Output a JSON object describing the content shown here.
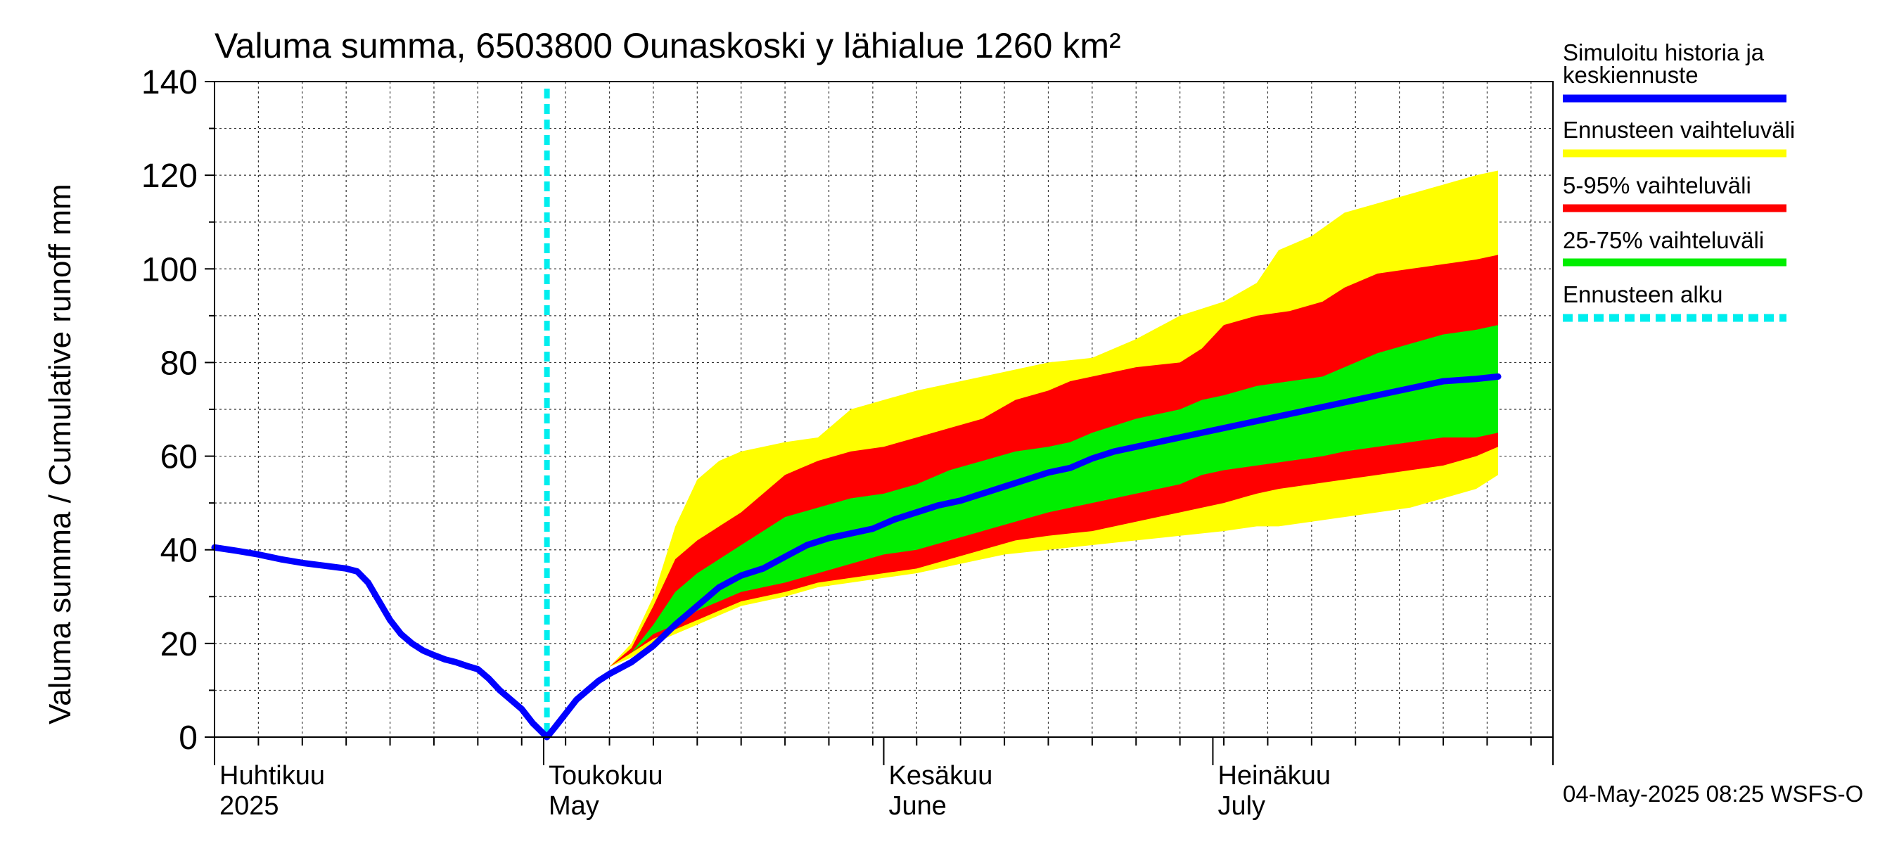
{
  "chart_data": {
    "type": "area",
    "title": "Valuma summa, 6503800 Ounaskoski y lähialue 1260 km²",
    "ylabel": "Valuma summa / Cumulative runoff    mm",
    "ylim": [
      0,
      140
    ],
    "yticks": [
      "0",
      "20",
      "40",
      "60",
      "80",
      "100",
      "120",
      "140"
    ],
    "x_range_days": [
      0,
      122
    ],
    "x_range_dates": [
      "2025-04-01",
      "2025-08-01"
    ],
    "month_labels": [
      {
        "day": 0,
        "fi": "Huhtikuu",
        "en": "2025"
      },
      {
        "day": 30,
        "fi": "Toukokuu",
        "en": "May"
      },
      {
        "day": 61,
        "fi": "Kesäkuu",
        "en": "June"
      },
      {
        "day": 91,
        "fi": "Heinäkuu",
        "en": "July"
      }
    ],
    "forecast_start_day": 30.3,
    "grid": true,
    "legend_placement": "right",
    "timestamp": "04-May-2025 08:25 WSFS-O",
    "series": [
      {
        "name": "Ennusteen vaihteluväli",
        "color": "#ffff00",
        "type": "band",
        "upper": [
          [
            30.3,
            0
          ],
          [
            32,
            7
          ],
          [
            34,
            12
          ],
          [
            36,
            15
          ],
          [
            38,
            20
          ],
          [
            40,
            30
          ],
          [
            42,
            45
          ],
          [
            44,
            55
          ],
          [
            46,
            59
          ],
          [
            48,
            61
          ],
          [
            52,
            63
          ],
          [
            55,
            64
          ],
          [
            58,
            70
          ],
          [
            61,
            72
          ],
          [
            64,
            74
          ],
          [
            68,
            76
          ],
          [
            72,
            78
          ],
          [
            76,
            80
          ],
          [
            80,
            81
          ],
          [
            84,
            85
          ],
          [
            88,
            90
          ],
          [
            92,
            93
          ],
          [
            95,
            97
          ],
          [
            97,
            104
          ],
          [
            100,
            107
          ],
          [
            103,
            112
          ],
          [
            106,
            114
          ],
          [
            109,
            116
          ],
          [
            112,
            118
          ],
          [
            115,
            120
          ],
          [
            117,
            121
          ]
        ],
        "lower": [
          [
            30.3,
            0
          ],
          [
            32,
            7
          ],
          [
            34,
            12
          ],
          [
            36,
            15
          ],
          [
            38,
            17
          ],
          [
            40,
            20
          ],
          [
            42,
            22
          ],
          [
            44,
            24
          ],
          [
            46,
            26
          ],
          [
            48,
            28
          ],
          [
            52,
            30
          ],
          [
            55,
            32
          ],
          [
            58,
            33
          ],
          [
            61,
            34
          ],
          [
            64,
            35
          ],
          [
            68,
            37
          ],
          [
            72,
            39
          ],
          [
            76,
            40
          ],
          [
            80,
            41
          ],
          [
            84,
            42
          ],
          [
            88,
            43
          ],
          [
            92,
            44
          ],
          [
            95,
            45
          ],
          [
            97,
            45
          ],
          [
            100,
            46
          ],
          [
            103,
            47
          ],
          [
            106,
            48
          ],
          [
            109,
            49
          ],
          [
            112,
            51
          ],
          [
            115,
            53
          ],
          [
            117,
            56
          ]
        ]
      },
      {
        "name": "5-95% vaihteluväli",
        "color": "#ff0000",
        "type": "band",
        "upper": [
          [
            30.3,
            0
          ],
          [
            32,
            7
          ],
          [
            34,
            12
          ],
          [
            36,
            15
          ],
          [
            38,
            19
          ],
          [
            40,
            28
          ],
          [
            42,
            38
          ],
          [
            44,
            42
          ],
          [
            46,
            45
          ],
          [
            48,
            48
          ],
          [
            50,
            52
          ],
          [
            52,
            56
          ],
          [
            55,
            59
          ],
          [
            58,
            61
          ],
          [
            61,
            62
          ],
          [
            64,
            64
          ],
          [
            67,
            66
          ],
          [
            70,
            68
          ],
          [
            73,
            72
          ],
          [
            76,
            74
          ],
          [
            78,
            76
          ],
          [
            80,
            77
          ],
          [
            84,
            79
          ],
          [
            88,
            80
          ],
          [
            90,
            83
          ],
          [
            92,
            88
          ],
          [
            95,
            90
          ],
          [
            98,
            91
          ],
          [
            101,
            93
          ],
          [
            103,
            96
          ],
          [
            106,
            99
          ],
          [
            109,
            100
          ],
          [
            112,
            101
          ],
          [
            115,
            102
          ],
          [
            117,
            103
          ]
        ],
        "lower": [
          [
            30.3,
            0
          ],
          [
            32,
            7
          ],
          [
            34,
            12
          ],
          [
            36,
            15
          ],
          [
            38,
            18
          ],
          [
            40,
            21
          ],
          [
            42,
            23
          ],
          [
            44,
            25
          ],
          [
            46,
            27
          ],
          [
            48,
            29
          ],
          [
            52,
            31
          ],
          [
            55,
            33
          ],
          [
            58,
            34
          ],
          [
            61,
            35
          ],
          [
            64,
            36
          ],
          [
            67,
            38
          ],
          [
            70,
            40
          ],
          [
            73,
            42
          ],
          [
            76,
            43
          ],
          [
            80,
            44
          ],
          [
            84,
            46
          ],
          [
            88,
            48
          ],
          [
            92,
            50
          ],
          [
            95,
            52
          ],
          [
            97,
            53
          ],
          [
            100,
            54
          ],
          [
            103,
            55
          ],
          [
            106,
            56
          ],
          [
            109,
            57
          ],
          [
            112,
            58
          ],
          [
            115,
            60
          ],
          [
            117,
            62
          ]
        ]
      },
      {
        "name": "25-75% vaihteluväli",
        "color": "#00ee00",
        "type": "band",
        "upper": [
          [
            30.3,
            0
          ],
          [
            32,
            7
          ],
          [
            34,
            12
          ],
          [
            36,
            15
          ],
          [
            38,
            18
          ],
          [
            40,
            24
          ],
          [
            42,
            31
          ],
          [
            44,
            35
          ],
          [
            46,
            38
          ],
          [
            48,
            41
          ],
          [
            50,
            44
          ],
          [
            52,
            47
          ],
          [
            55,
            49
          ],
          [
            58,
            51
          ],
          [
            61,
            52
          ],
          [
            64,
            54
          ],
          [
            67,
            57
          ],
          [
            70,
            59
          ],
          [
            73,
            61
          ],
          [
            76,
            62
          ],
          [
            78,
            63
          ],
          [
            80,
            65
          ],
          [
            84,
            68
          ],
          [
            88,
            70
          ],
          [
            90,
            72
          ],
          [
            92,
            73
          ],
          [
            95,
            75
          ],
          [
            98,
            76
          ],
          [
            101,
            77
          ],
          [
            103,
            79
          ],
          [
            106,
            82
          ],
          [
            109,
            84
          ],
          [
            112,
            86
          ],
          [
            115,
            87
          ],
          [
            117,
            88
          ]
        ],
        "lower": [
          [
            30.3,
            0
          ],
          [
            32,
            7
          ],
          [
            34,
            12
          ],
          [
            36,
            15
          ],
          [
            38,
            18
          ],
          [
            40,
            22
          ],
          [
            42,
            24
          ],
          [
            44,
            27
          ],
          [
            46,
            29
          ],
          [
            48,
            31
          ],
          [
            52,
            33
          ],
          [
            55,
            35
          ],
          [
            58,
            37
          ],
          [
            61,
            39
          ],
          [
            64,
            40
          ],
          [
            67,
            42
          ],
          [
            70,
            44
          ],
          [
            73,
            46
          ],
          [
            76,
            48
          ],
          [
            80,
            50
          ],
          [
            84,
            52
          ],
          [
            88,
            54
          ],
          [
            90,
            56
          ],
          [
            92,
            57
          ],
          [
            95,
            58
          ],
          [
            98,
            59
          ],
          [
            101,
            60
          ],
          [
            103,
            61
          ],
          [
            106,
            62
          ],
          [
            109,
            63
          ],
          [
            112,
            64
          ],
          [
            115,
            64
          ],
          [
            117,
            65
          ]
        ]
      },
      {
        "name": "Simuloitu historia ja keskiennuste",
        "color": "#0000ff",
        "type": "line",
        "points": [
          [
            0,
            40.5
          ],
          [
            2,
            39.8
          ],
          [
            4,
            39
          ],
          [
            6,
            38
          ],
          [
            8,
            37.2
          ],
          [
            10,
            36.6
          ],
          [
            12,
            36
          ],
          [
            13,
            35.4
          ],
          [
            14,
            33
          ],
          [
            15,
            29
          ],
          [
            16,
            25
          ],
          [
            17,
            22
          ],
          [
            18,
            20
          ],
          [
            19,
            18.5
          ],
          [
            20,
            17.5
          ],
          [
            21,
            16.6
          ],
          [
            22,
            16
          ],
          [
            23,
            15.2
          ],
          [
            24,
            14.5
          ],
          [
            25,
            12.5
          ],
          [
            26,
            10
          ],
          [
            27,
            8
          ],
          [
            28,
            6
          ],
          [
            29,
            3
          ],
          [
            30.3,
            0
          ],
          [
            31,
            2
          ],
          [
            32,
            5
          ],
          [
            33,
            8
          ],
          [
            34,
            10
          ],
          [
            35,
            12
          ],
          [
            36,
            13.5
          ],
          [
            38,
            16
          ],
          [
            40,
            19.5
          ],
          [
            42,
            24
          ],
          [
            44,
            28
          ],
          [
            46,
            32
          ],
          [
            48,
            34.5
          ],
          [
            50,
            36
          ],
          [
            52,
            38.5
          ],
          [
            54,
            41
          ],
          [
            56,
            42.5
          ],
          [
            58,
            43.5
          ],
          [
            60,
            44.5
          ],
          [
            62,
            46.5
          ],
          [
            64,
            48
          ],
          [
            66,
            49.5
          ],
          [
            68,
            50.5
          ],
          [
            70,
            52
          ],
          [
            72,
            53.5
          ],
          [
            74,
            55
          ],
          [
            76,
            56.5
          ],
          [
            78,
            57.5
          ],
          [
            80,
            59.5
          ],
          [
            82,
            61
          ],
          [
            84,
            62
          ],
          [
            86,
            63
          ],
          [
            88,
            64
          ],
          [
            90,
            65
          ],
          [
            92,
            66
          ],
          [
            94,
            67
          ],
          [
            96,
            68
          ],
          [
            98,
            69
          ],
          [
            100,
            70
          ],
          [
            102,
            71
          ],
          [
            104,
            72
          ],
          [
            106,
            73
          ],
          [
            108,
            74
          ],
          [
            110,
            75
          ],
          [
            112,
            76
          ],
          [
            115,
            76.5
          ],
          [
            117,
            77
          ]
        ]
      },
      {
        "name": "Ennusteen alku",
        "color": "#00eeee",
        "type": "vline",
        "day": 30.3
      }
    ]
  }
}
